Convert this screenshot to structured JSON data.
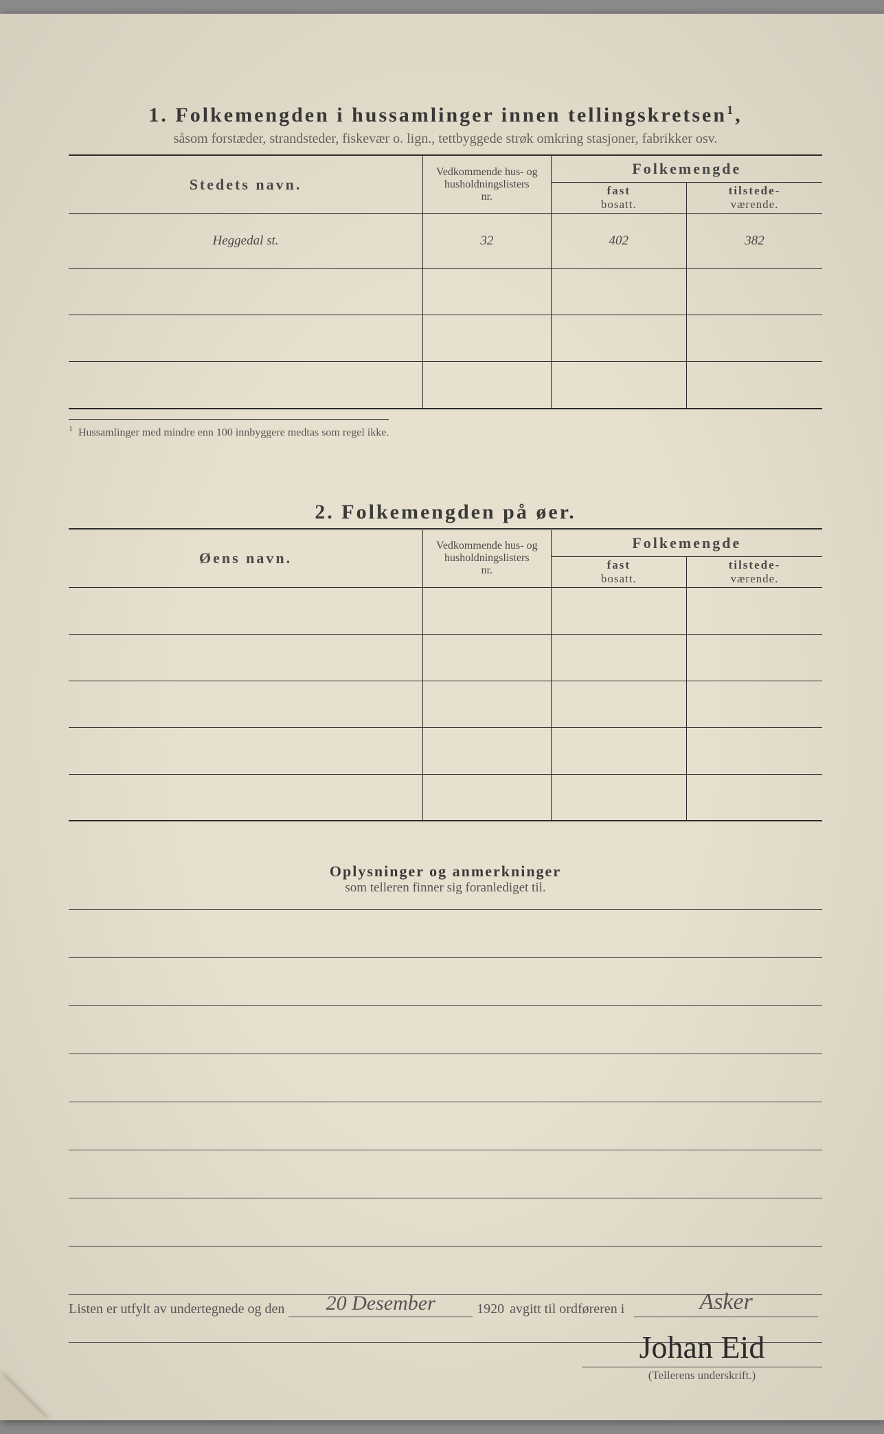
{
  "section1": {
    "number": "1.",
    "title": "Folkemengden i hussamlinger innen tellingskretsen",
    "title_sup": "1",
    "subtitle": "såsom forstæder, strandsteder, fiskevær o. lign., tettbyggede strøk omkring stasjoner, fabrikker osv.",
    "headers": {
      "name": "Stedets navn.",
      "nr_line1": "Vedkommende hus- og",
      "nr_line2": "husholdningslisters",
      "nr_line3": "nr.",
      "folk": "Folkemengde",
      "fast": "fast",
      "bosatt": "bosatt.",
      "tilstede": "tilstede-",
      "vaerende": "værende."
    },
    "rows": [
      {
        "name": "Heggedal st.",
        "nr": "32",
        "fast": "402",
        "til": "382"
      },
      {
        "name": "",
        "nr": "",
        "fast": "",
        "til": ""
      },
      {
        "name": "",
        "nr": "",
        "fast": "",
        "til": ""
      },
      {
        "name": "",
        "nr": "",
        "fast": "",
        "til": ""
      }
    ],
    "footnote_mark": "1",
    "footnote": "Hussamlinger med mindre enn 100 innbyggere medtas som regel ikke."
  },
  "section2": {
    "number": "2.",
    "title": "Folkemengden på øer.",
    "headers": {
      "name": "Øens navn.",
      "nr_line1": "Vedkommende hus- og",
      "nr_line2": "husholdningslisters",
      "nr_line3": "nr.",
      "folk": "Folkemengde",
      "fast": "fast",
      "bosatt": "bosatt.",
      "tilstede": "tilstede-",
      "vaerende": "værende."
    },
    "rows": [
      {
        "name": "",
        "nr": "",
        "fast": "",
        "til": ""
      },
      {
        "name": "",
        "nr": "",
        "fast": "",
        "til": ""
      },
      {
        "name": "",
        "nr": "",
        "fast": "",
        "til": ""
      },
      {
        "name": "",
        "nr": "",
        "fast": "",
        "til": ""
      },
      {
        "name": "",
        "nr": "",
        "fast": "",
        "til": ""
      }
    ]
  },
  "section3": {
    "title": "Oplysninger og anmerkninger",
    "subtitle": "som telleren finner sig foranlediget til.",
    "line_count": 9
  },
  "signoff": {
    "prefix": "Listen er utfylt av undertegnede og den",
    "date_hand": "20 Desember",
    "year_suffix": "1920",
    "mid": "avgitt til ordføreren i",
    "place_hand": "Asker",
    "signature": "Johan Eid",
    "sig_label": "(Tellerens underskrift.)"
  }
}
